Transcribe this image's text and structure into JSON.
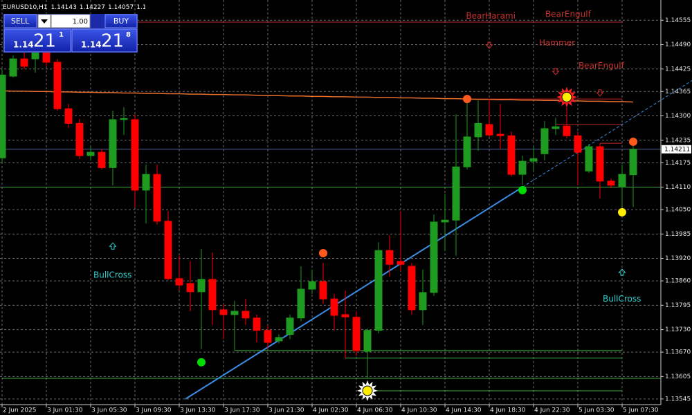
{
  "chart_data": {
    "type": "candlestick",
    "symbol": "EURUSD10,H1",
    "categories": [
      "2 Jun 2025",
      null,
      null,
      null,
      "3 Jun 01:30",
      null,
      null,
      null,
      "3 Jun 05:30",
      null,
      null,
      null,
      "3 Jun 09:30",
      null,
      null,
      null,
      "3 Jun 13:30",
      null,
      null,
      null,
      "3 Jun 17:30",
      null,
      null,
      null,
      "3 Jun 21:30",
      null,
      null,
      null,
      "4 Jun 02:30",
      null,
      null,
      null,
      "4 Jun 06:30",
      null,
      null,
      null,
      "4 Jun 10:30",
      null,
      null,
      null,
      "4 Jun 14:30",
      null,
      null,
      null,
      "4 Jun 18:30",
      null,
      null,
      null,
      "4 Jun 22:30",
      null,
      null,
      null,
      "5 Jun 03:30",
      null,
      null,
      null,
      "5 Jun 07:30",
      null
    ],
    "open": [
      1.14188,
      1.14406,
      1.14452,
      1.14452,
      1.1447,
      1.14443,
      1.14319,
      1.1428,
      1.14194,
      1.14203,
      1.14162,
      1.1429,
      1.1429,
      1.14102,
      1.14144,
      1.14019,
      1.13866,
      1.13853,
      1.13831,
      1.13864,
      1.13783,
      1.1377,
      1.13779,
      1.13761,
      1.13728,
      1.137,
      1.13717,
      1.13761,
      1.13838,
      1.13858,
      1.13812,
      1.1377,
      1.13763,
      1.13672,
      1.13728,
      1.13941,
      1.13912,
      1.13899,
      1.13783,
      1.13829,
      1.14017,
      1.14022,
      1.14164,
      1.14244,
      1.14277,
      1.14251,
      1.14247,
      1.14144,
      1.14179,
      1.14199,
      1.14266,
      1.14273,
      1.14247,
      1.14153,
      1.14218,
      1.14126,
      1.14111,
      1.14143
    ],
    "high": [
      1.14424,
      1.14461,
      1.1447,
      1.14498,
      1.14498,
      1.14452,
      1.14332,
      1.14292,
      1.14221,
      1.14212,
      1.14314,
      1.14323,
      1.14304,
      1.1417,
      1.1417,
      1.14046,
      1.13927,
      1.13912,
      1.13945,
      1.13936,
      1.13798,
      1.13807,
      1.13812,
      1.1377,
      1.13742,
      1.13718,
      1.1377,
      1.13899,
      1.1389,
      1.13908,
      1.13825,
      1.13834,
      1.13779,
      1.13733,
      1.13963,
      1.13982,
      1.14046,
      1.13908,
      1.1389,
      1.14037,
      1.14092,
      1.14304,
      1.14356,
      1.14341,
      1.14345,
      1.14332,
      1.14258,
      1.14194,
      1.14218,
      1.14286,
      1.14295,
      1.14323,
      1.14258,
      1.14225,
      1.14227,
      1.14133,
      1.1417,
      1.14227
    ],
    "low": [
      1.14175,
      1.14402,
      1.14424,
      1.14415,
      1.14433,
      1.14314,
      1.14268,
      1.14185,
      1.14181,
      1.14157,
      1.14115,
      1.14249,
      1.14056,
      1.14013,
      1.1401,
      1.13862,
      1.13834,
      1.13779,
      1.13678,
      1.13742,
      1.13705,
      1.13674,
      1.13742,
      1.13696,
      1.13681,
      1.13693,
      1.13705,
      1.13752,
      1.13825,
      1.13798,
      1.13728,
      1.13654,
      1.13659,
      1.13599,
      1.1372,
      1.13871,
      1.13886,
      1.1377,
      1.13742,
      1.1382,
      1.13941,
      1.13927,
      1.14157,
      1.14207,
      1.14244,
      1.14212,
      1.14139,
      1.14115,
      1.14151,
      1.14181,
      1.14249,
      1.1424,
      1.14115,
      1.14148,
      1.1408,
      1.14107,
      1.14056,
      1.14057
    ],
    "close": [
      1.14409,
      1.14452,
      1.14432,
      1.1447,
      1.14443,
      1.14319,
      1.1428,
      1.14194,
      1.14203,
      1.14162,
      1.1429,
      1.14293,
      1.14102,
      1.14144,
      1.14019,
      1.13866,
      1.13849,
      1.13831,
      1.13864,
      1.13783,
      1.1377,
      1.13779,
      1.13761,
      1.13728,
      1.13696,
      1.13709,
      1.13761,
      1.13838,
      1.13858,
      1.13812,
      1.13768,
      1.13764,
      1.13674,
      1.13728,
      1.13941,
      1.13904,
      1.13904,
      1.13783,
      1.13829,
      1.14017,
      1.14022,
      1.14164,
      1.14244,
      1.1428,
      1.14249,
      1.14247,
      1.14144,
      1.14179,
      1.14186,
      1.14266,
      1.14271,
      1.14247,
      1.14203,
      1.14218,
      1.14126,
      1.14115,
      1.14144,
      1.14211
    ],
    "bull_color": "#1f9b1f",
    "bear_color": "#ff0000",
    "ma": {
      "color": "#e8702a",
      "values": [
        1.14367,
        1.14366,
        1.14366,
        1.14365,
        1.14365,
        1.14364,
        1.14364,
        1.14363,
        1.14363,
        1.14362,
        1.14362,
        1.14361,
        1.14361,
        1.1436,
        1.1436,
        1.14359,
        1.14359,
        1.14358,
        1.14358,
        1.14357,
        1.14357,
        1.14356,
        1.14356,
        1.14355,
        1.14354,
        1.14354,
        1.14353,
        1.14353,
        1.14352,
        1.14352,
        1.14351,
        1.14351,
        1.1435,
        1.1435,
        1.14349,
        1.14349,
        1.14348,
        1.14348,
        1.14347,
        1.14347,
        1.14346,
        1.14346,
        1.14345,
        1.14344,
        1.14344,
        1.14343,
        1.14343,
        1.14342,
        1.14342,
        1.14341,
        1.14341,
        1.1434,
        1.1434,
        1.14339,
        1.14339,
        1.14338,
        1.14338,
        1.14337
      ]
    },
    "trendline": {
      "color": "#3a8ee6",
      "x": [
        16.56,
        47
      ],
      "y": [
        1.13545,
        1.1411
      ]
    },
    "levels": [
      {
        "price": 1.1455,
        "from": 4,
        "to": 56,
        "color": "#c8262a"
      },
      {
        "price": 1.1411,
        "from": 0,
        "to": 59.5,
        "color": "#3fae3f"
      },
      {
        "price": 1.136,
        "from": 0,
        "to": 59.5,
        "color": "#3fae3f"
      },
      {
        "price": 1.13674,
        "from": 21,
        "to": 56,
        "color": "#3fae3f"
      },
      {
        "price": 1.13654,
        "from": 31,
        "to": 56,
        "color": "#3fae3f"
      },
      {
        "price": 1.13567,
        "from": 33,
        "to": 56,
        "color": "#3fae3f"
      },
      {
        "price": 1.14345,
        "from": 42,
        "to": 56,
        "color": "#c8262a"
      },
      {
        "price": 1.14277,
        "from": 50,
        "to": 56,
        "color": "#c8262a"
      },
      {
        "price": 1.14227,
        "from": 54,
        "to": 56,
        "color": "#c8262a"
      }
    ],
    "signals": [
      {
        "x": 18,
        "y": 1.13643,
        "color": "#00dd00",
        "kind": "dot"
      },
      {
        "x": 47,
        "y": 1.14102,
        "color": "#00dd00",
        "kind": "dot"
      },
      {
        "x": 29,
        "y": 1.13934,
        "color": "#ff5a1e",
        "kind": "dot"
      },
      {
        "x": 42,
        "y": 1.14345,
        "color": "#ff5a1e",
        "kind": "dot"
      },
      {
        "x": 57,
        "y": 1.14231,
        "color": "#ff5a1e",
        "kind": "dot"
      },
      {
        "x": 56,
        "y": 1.14043,
        "color": "#ffee00",
        "kind": "dot"
      },
      {
        "x": 33,
        "y": 1.13567,
        "color": "#ffffff",
        "kind": "burst"
      },
      {
        "x": 51,
        "y": 1.1435,
        "color": "#ff2020",
        "kind": "burst"
      }
    ],
    "arrows": [
      {
        "x": 10,
        "y": 1.13952,
        "dir": "up",
        "color": "#33cccc"
      },
      {
        "x": 56,
        "y": 1.13882,
        "dir": "up",
        "color": "#33cccc"
      },
      {
        "x": 44,
        "y": 1.14489,
        "dir": "down",
        "color": "#d02a2a"
      },
      {
        "x": 50,
        "y": 1.14419,
        "dir": "down",
        "color": "#d02a2a"
      },
      {
        "x": 54,
        "y": 1.14362,
        "dir": "down",
        "color": "#d02a2a"
      }
    ],
    "annotations": [
      {
        "text": "BearHarami",
        "x": 41.9,
        "y": 1.14566,
        "color": "#c8312d"
      },
      {
        "text": "BearEngulf",
        "x": 49.06,
        "y": 1.1457,
        "color": "#c8312d"
      },
      {
        "text": "Hammer",
        "x": 48.5,
        "y": 1.14494,
        "color": "#c8312d"
      },
      {
        "text": "BearEngulf",
        "x": 52.06,
        "y": 1.14433,
        "color": "#c8312d"
      },
      {
        "text": "BullCross",
        "x": 8.25,
        "y": 1.13875,
        "color": "#33cccc"
      },
      {
        "text": "BullCross",
        "x": 54.25,
        "y": 1.13811,
        "color": "#33cccc"
      }
    ],
    "ylim": [
      1.1353,
      1.14609
    ],
    "yticks": [
      1.14555,
      {
        "value": 1.1449,
        "label": "1.14490"
      },
      1.14425,
      1.14365,
      {
        "value": 1.143,
        "label": "1.14300"
      },
      1.14235,
      1.14175,
      {
        "value": 1.1411,
        "label": "1.14110"
      },
      {
        "value": 1.1405,
        "label": "1.14050"
      },
      1.13985,
      {
        "value": 1.1392,
        "label": "1.13920"
      },
      {
        "value": 1.1386,
        "label": "1.13860"
      },
      1.13795,
      {
        "value": 1.1373,
        "label": "1.13730"
      },
      {
        "value": 1.1367,
        "label": "1.13670"
      },
      1.13605,
      1.13545
    ],
    "grid": true,
    "trade_panel": {
      "sell": "SELL",
      "buy": "BUY",
      "lot": "1.00",
      "bid": {
        "big": "1.14",
        "pips": "21",
        "point": "1"
      },
      "ask": {
        "big": "1.14",
        "pips": "21",
        "point": "8"
      }
    }
  }
}
